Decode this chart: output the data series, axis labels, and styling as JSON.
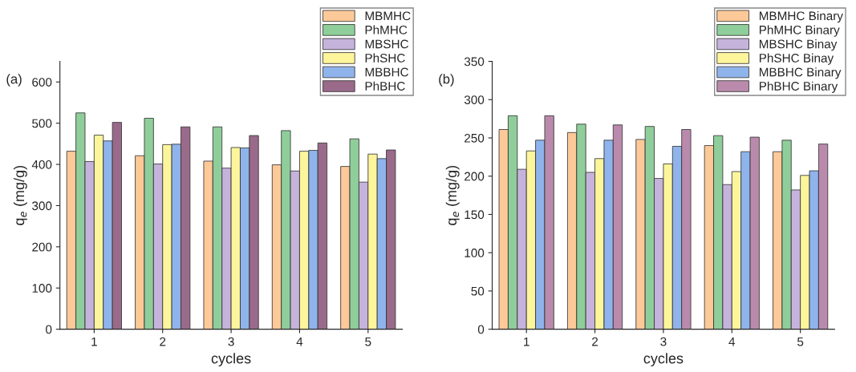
{
  "chart_data": [
    {
      "type": "bar",
      "xlabel": "cycles",
      "ylabel": "q$_{e}$ (mg/g)",
      "annotations": [
        "(a)"
      ],
      "categories": [
        "1",
        "2",
        "3",
        "4",
        "5"
      ],
      "ylim": [
        0,
        650
      ],
      "yticks": [
        0,
        100,
        200,
        300,
        400,
        500,
        600
      ],
      "legend": "top right",
      "grid": false,
      "series": [
        {
          "name": "MBMHC",
          "color": "#fdc998",
          "values": [
            432,
            421,
            408,
            399,
            395
          ]
        },
        {
          "name": "PhMHC",
          "color": "#8fce9a",
          "values": [
            525,
            512,
            491,
            482,
            462
          ]
        },
        {
          "name": "MBSHC",
          "color": "#c6b3dc",
          "values": [
            407,
            401,
            391,
            384,
            357
          ]
        },
        {
          "name": "PhSHC",
          "color": "#fdf59c",
          "values": [
            471,
            448,
            441,
            432,
            425
          ]
        },
        {
          "name": "MBBHC",
          "color": "#8fb4ec",
          "values": [
            457,
            449,
            440,
            434,
            414
          ]
        },
        {
          "name": "PhBHC",
          "color": "#9a6a8a",
          "values": [
            502,
            491,
            470,
            452,
            435
          ]
        }
      ]
    },
    {
      "type": "bar",
      "xlabel": "cycles",
      "ylabel": "q$_{e}$ (mg/g)",
      "annotations": [
        "(b)"
      ],
      "categories": [
        "1",
        "2",
        "3",
        "4",
        "5"
      ],
      "ylim": [
        0,
        350
      ],
      "yticks": [
        0,
        50,
        100,
        150,
        200,
        250,
        300,
        350
      ],
      "legend": "top right",
      "grid": false,
      "series": [
        {
          "name": "MBMHC Binary",
          "color": "#fdc998",
          "values": [
            261,
            257,
            248,
            240,
            232
          ]
        },
        {
          "name": "PhMHC Binary",
          "color": "#8fce9a",
          "values": [
            279,
            268,
            265,
            253,
            247
          ]
        },
        {
          "name": "MBSHC Binay",
          "color": "#c6b3dc",
          "values": [
            209,
            205,
            197,
            189,
            182
          ]
        },
        {
          "name": "PhSHC Binay",
          "color": "#fdf59c",
          "values": [
            233,
            223,
            216,
            206,
            201
          ]
        },
        {
          "name": "MBBHC Binary",
          "color": "#8fb4ec",
          "values": [
            247,
            247,
            239,
            232,
            207
          ]
        },
        {
          "name": "PhBHC Binary",
          "color": "#b98aac",
          "values": [
            279,
            267,
            261,
            251,
            242
          ]
        }
      ]
    }
  ]
}
